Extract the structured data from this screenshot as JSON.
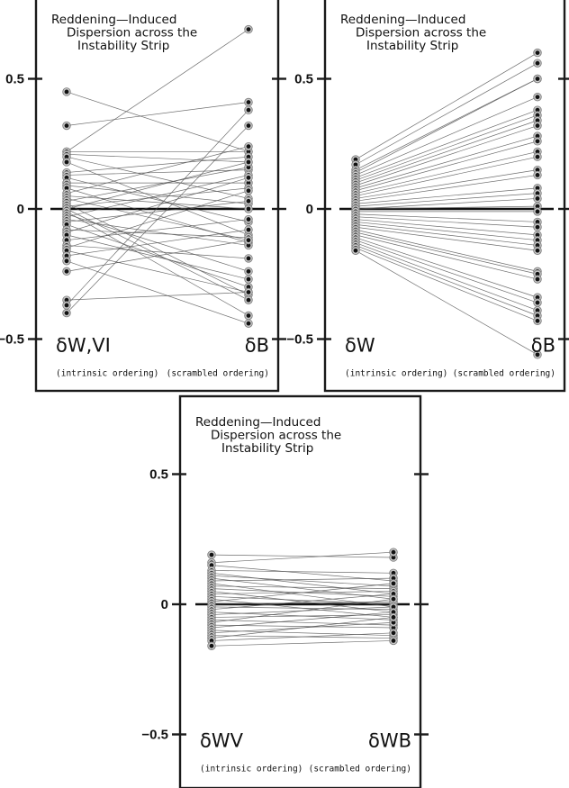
{
  "figure": {
    "panels": [
      {
        "id": "A",
        "title_lines": [
          "Reddening—Induced",
          "Dispersion across the",
          "Instability Strip"
        ],
        "left_label": "δW,VI",
        "right_label": "δB",
        "left_order": "(intrinsic ordering)",
        "right_order": "(scrambled ordering)",
        "yticks": [
          "0.5",
          "0",
          "−0.5"
        ]
      },
      {
        "id": "B",
        "title_lines": [
          "Reddening—Induced",
          "Dispersion across the",
          "Instability Strip"
        ],
        "left_label": "δW",
        "right_label": "δB",
        "left_order": "(intrinsic ordering)",
        "right_order": "(scrambled ordering)",
        "yticks": [
          "0.5",
          "0",
          "−0.5"
        ]
      },
      {
        "id": "C",
        "title_lines": [
          "Reddening—Induced",
          "Dispersion across the",
          "Instability Strip"
        ],
        "left_label": "δWV",
        "right_label": "δWB",
        "left_order": "(intrinsic ordering)",
        "right_order": "(scrambled ordering)",
        "yticks": [
          "0.5",
          "0",
          "−0.5"
        ]
      }
    ]
  },
  "chart_data": [
    {
      "type": "line",
      "title": "Reddening—Induced Dispersion across the Instability Strip",
      "categories": [
        "δW,VI (intrinsic ordering)",
        "δB (scrambled ordering)"
      ],
      "ylabel": "",
      "ylim": [
        -0.7,
        0.75
      ],
      "yticks": [
        0.5,
        0,
        -0.5
      ],
      "grid": false,
      "zero_line": true,
      "pairs": [
        [
          0.45,
          0.22
        ],
        [
          0.32,
          0.41
        ],
        [
          0.22,
          0.69
        ],
        [
          0.22,
          0.22
        ],
        [
          0.21,
          0.18
        ],
        [
          0.2,
          0.04
        ],
        [
          0.18,
          -0.1
        ],
        [
          0.14,
          0.2
        ],
        [
          0.13,
          0.15
        ],
        [
          0.12,
          -0.05
        ],
        [
          0.1,
          0.1
        ],
        [
          0.09,
          0.02
        ],
        [
          0.08,
          -0.13
        ],
        [
          0.06,
          0.24
        ],
        [
          0.05,
          0.0
        ],
        [
          0.04,
          -0.12
        ],
        [
          0.03,
          0.16
        ],
        [
          0.02,
          -0.33
        ],
        [
          0.01,
          0.08
        ],
        [
          0.0,
          -0.35
        ],
        [
          0.0,
          0.18
        ],
        [
          -0.01,
          -0.41
        ],
        [
          -0.02,
          -0.24
        ],
        [
          -0.03,
          0.13
        ],
        [
          -0.04,
          -0.14
        ],
        [
          -0.05,
          0.03
        ],
        [
          -0.06,
          -0.3
        ],
        [
          -0.08,
          -0.11
        ],
        [
          -0.09,
          0.12
        ],
        [
          -0.1,
          -0.27
        ],
        [
          -0.12,
          -0.04
        ],
        [
          -0.14,
          -0.19
        ],
        [
          -0.15,
          0.07
        ],
        [
          -0.16,
          -0.32
        ],
        [
          -0.18,
          -0.08
        ],
        [
          -0.2,
          -0.44
        ],
        [
          -0.24,
          -0.12
        ],
        [
          -0.35,
          -0.32
        ],
        [
          -0.37,
          0.38
        ],
        [
          -0.4,
          0.32
        ]
      ]
    },
    {
      "type": "line",
      "title": "Reddening—Induced Dispersion across the Instability Strip",
      "categories": [
        "δW (intrinsic ordering)",
        "δB (scrambled ordering)"
      ],
      "ylabel": "",
      "ylim": [
        -0.7,
        0.75
      ],
      "yticks": [
        0.5,
        0,
        -0.5
      ],
      "grid": false,
      "zero_line": true,
      "pairs": [
        [
          0.19,
          0.6
        ],
        [
          0.17,
          0.56
        ],
        [
          0.15,
          0.5
        ],
        [
          0.14,
          0.5
        ],
        [
          0.13,
          0.43
        ],
        [
          0.12,
          0.38
        ],
        [
          0.11,
          0.36
        ],
        [
          0.1,
          0.34
        ],
        [
          0.09,
          0.32
        ],
        [
          0.08,
          0.28
        ],
        [
          0.07,
          0.26
        ],
        [
          0.06,
          0.22
        ],
        [
          0.05,
          0.2
        ],
        [
          0.04,
          0.15
        ],
        [
          0.03,
          0.13
        ],
        [
          0.02,
          0.08
        ],
        [
          0.01,
          0.06
        ],
        [
          0.0,
          0.04
        ],
        [
          0.0,
          0.01
        ],
        [
          -0.01,
          -0.01
        ],
        [
          -0.02,
          -0.05
        ],
        [
          -0.03,
          -0.07
        ],
        [
          -0.04,
          -0.1
        ],
        [
          -0.05,
          -0.12
        ],
        [
          -0.06,
          -0.14
        ],
        [
          -0.07,
          -0.16
        ],
        [
          -0.08,
          -0.24
        ],
        [
          -0.09,
          -0.25
        ],
        [
          -0.1,
          -0.27
        ],
        [
          -0.11,
          -0.34
        ],
        [
          -0.12,
          -0.36
        ],
        [
          -0.13,
          -0.39
        ],
        [
          -0.14,
          -0.41
        ],
        [
          -0.15,
          -0.43
        ],
        [
          -0.16,
          -0.56
        ]
      ]
    },
    {
      "type": "line",
      "title": "Reddening—Induced Dispersion across the Instability Strip",
      "categories": [
        "δWV (intrinsic ordering)",
        "δWB (scrambled ordering)"
      ],
      "ylabel": "",
      "ylim": [
        -0.7,
        0.75
      ],
      "yticks": [
        0.5,
        0,
        -0.5
      ],
      "grid": false,
      "zero_line": true,
      "pairs": [
        [
          0.19,
          0.18
        ],
        [
          0.16,
          0.2
        ],
        [
          0.15,
          0.09
        ],
        [
          0.13,
          0.12
        ],
        [
          0.12,
          0.04
        ],
        [
          0.11,
          0.07
        ],
        [
          0.1,
          0.02
        ],
        [
          0.09,
          0.1
        ],
        [
          0.08,
          -0.01
        ],
        [
          0.07,
          0.06
        ],
        [
          0.06,
          0.03
        ],
        [
          0.05,
          -0.03
        ],
        [
          0.04,
          0.05
        ],
        [
          0.03,
          0.0
        ],
        [
          0.02,
          -0.05
        ],
        [
          0.01,
          0.08
        ],
        [
          0.0,
          0.01
        ],
        [
          -0.01,
          -0.02
        ],
        [
          -0.02,
          0.04
        ],
        [
          -0.03,
          -0.06
        ],
        [
          -0.04,
          -0.01
        ],
        [
          -0.05,
          -0.04
        ],
        [
          -0.06,
          -0.08
        ],
        [
          -0.07,
          0.02
        ],
        [
          -0.08,
          -0.09
        ],
        [
          -0.09,
          -0.03
        ],
        [
          -0.1,
          -0.12
        ],
        [
          -0.11,
          -0.07
        ],
        [
          -0.12,
          -0.13
        ],
        [
          -0.13,
          -0.05
        ],
        [
          -0.14,
          -0.11
        ],
        [
          -0.16,
          -0.14
        ]
      ]
    }
  ]
}
